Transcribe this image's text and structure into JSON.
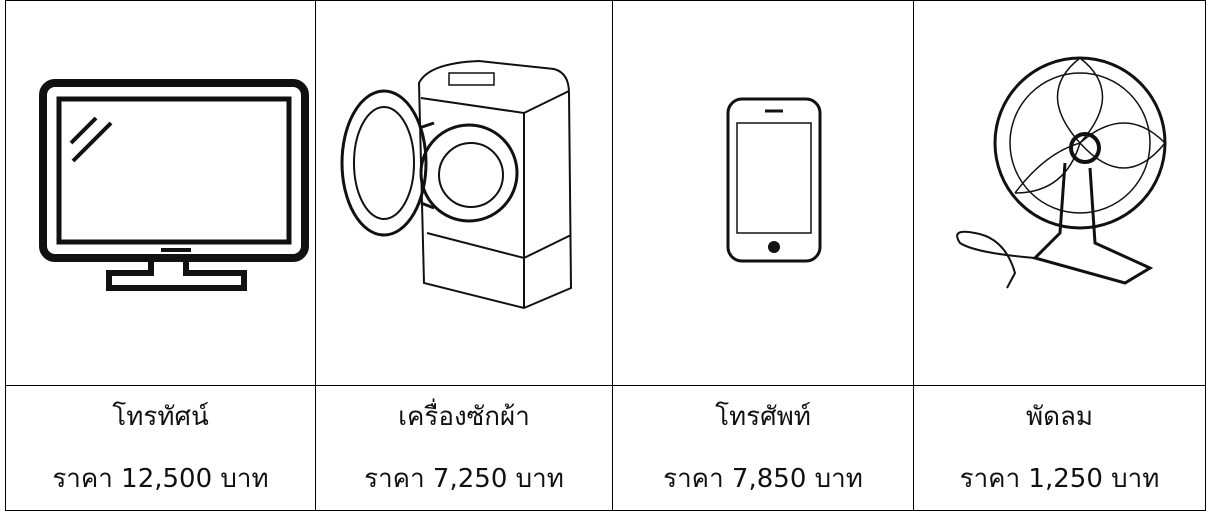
{
  "table": {
    "rows": [
      [
        "โทรทัศน์",
        "เครื่องซักผ้า",
        "โทรศัพท์",
        "พัดลม"
      ],
      [
        "ราคา 12,500 บาท",
        "ราคา 7,250 บาท",
        "ราคา 7,850 บาท",
        "ราคา 1,250 บาท"
      ]
    ]
  }
}
